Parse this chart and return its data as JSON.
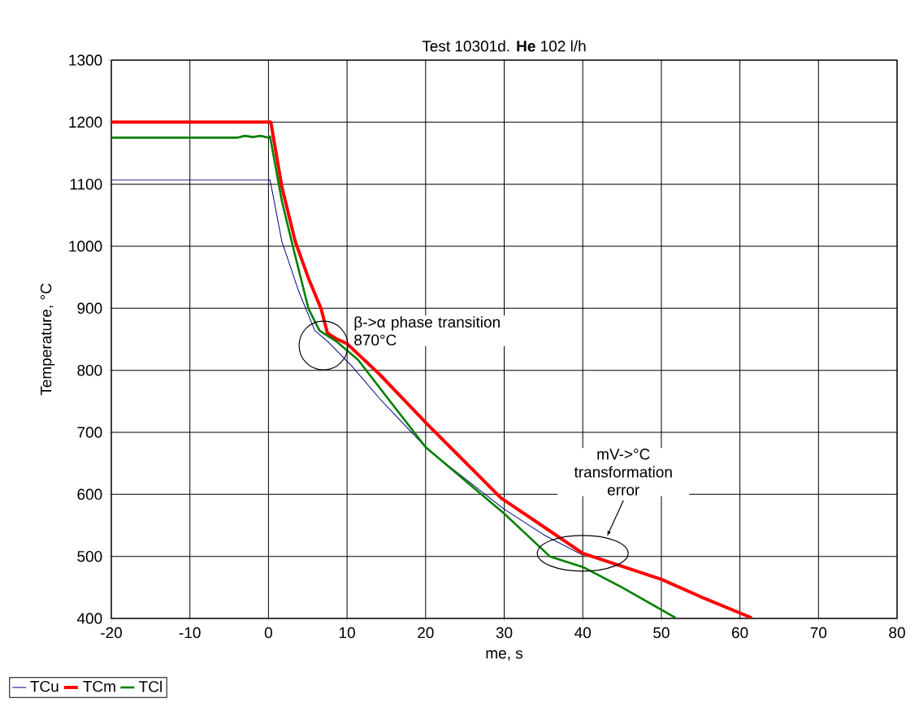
{
  "chart_data": {
    "type": "line",
    "title": "Test 10301d. **He** 102  l/h",
    "xlabel": "me, s",
    "ylabel": "Temperature, °C",
    "xlim": [
      -20,
      80
    ],
    "ylim": [
      400,
      1300
    ],
    "xticks": [
      -20,
      -10,
      0,
      10,
      20,
      30,
      40,
      50,
      60,
      70,
      80
    ],
    "yticks": [
      400,
      500,
      600,
      700,
      800,
      900,
      1000,
      1100,
      1200,
      1300
    ],
    "grid": true,
    "legend": "bottom left",
    "marker": "none",
    "line_style": "solid",
    "annotations": [
      "β->α phase transition 870°C",
      "mV->°C transformation error"
    ],
    "series": [
      {
        "name": "TCu",
        "color": "#000080",
        "x": [
          -20,
          0,
          0.2,
          1.7,
          3.8,
          5.9,
          7.5,
          10.6,
          14.1,
          20.3,
          29.9,
          35,
          40
        ],
        "values": [
          1107,
          1107,
          1107,
          1008,
          929,
          864,
          847,
          807,
          755,
          672,
          577,
          535,
          502
        ]
      },
      {
        "name": "TCm",
        "color": "#ff0000",
        "x": [
          -20,
          0.3,
          1.7,
          3.4,
          5.1,
          6.7,
          7.5,
          8.6,
          10,
          14.1,
          20.3,
          29.6,
          35,
          40,
          45,
          50,
          55,
          61.5
        ],
        "values": [
          1200,
          1200,
          1096,
          1008,
          948,
          899,
          860,
          851,
          843,
          794,
          712,
          594,
          548,
          505,
          484,
          463,
          435,
          401
        ]
      },
      {
        "name": "TCl",
        "color": "#008000",
        "x": [
          -20,
          -4,
          -3,
          -2,
          -1,
          0,
          0.2,
          1.7,
          3.1,
          5.1,
          6.5,
          8.6,
          11.4,
          20,
          30,
          35.8,
          40,
          45,
          51.8
        ],
        "values": [
          1175,
          1175,
          1178,
          1176,
          1178,
          1175,
          1177,
          1073,
          1000,
          899,
          864,
          847,
          817,
          676,
          569,
          500,
          483,
          450,
          401
        ]
      }
    ]
  }
}
